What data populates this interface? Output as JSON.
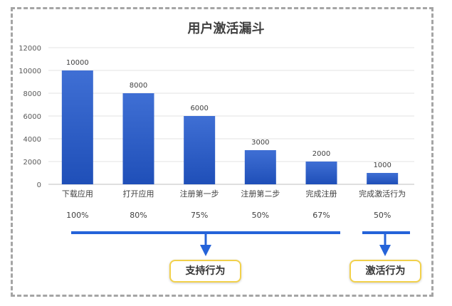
{
  "chart_data": {
    "type": "bar",
    "title": "用户激活漏斗",
    "categories": [
      "下载应用",
      "打开应用",
      "注册第一步",
      "注册第二步",
      "完成注册",
      "完成激活行为"
    ],
    "values": [
      10000,
      8000,
      6000,
      3000,
      2000,
      1000
    ],
    "conversion_rates": [
      "100%",
      "80%",
      "75%",
      "50%",
      "67%",
      "50%"
    ],
    "ylim": [
      0,
      12000
    ],
    "yticks": [
      0,
      2000,
      4000,
      6000,
      8000,
      10000,
      12000
    ],
    "grid": true,
    "bar_color": "#2e5fc7"
  },
  "annotations": {
    "group1_label": "支持行为",
    "group2_label": "激活行为",
    "bracket_color": "#2563d9",
    "box_border_color": "#f2d14b"
  }
}
